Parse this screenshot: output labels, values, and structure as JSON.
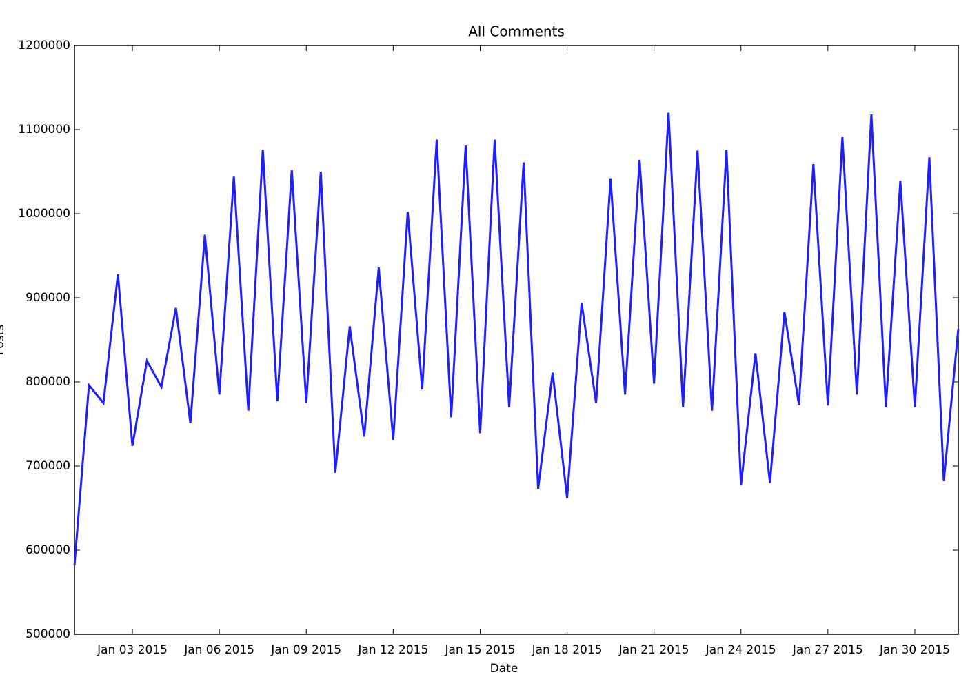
{
  "chart_data": {
    "type": "line",
    "title": "All Comments",
    "x_label": "Date",
    "y_label": "Posts",
    "x": [
      "2015-01-01T00:00",
      "2015-01-01T12:00",
      "2015-01-02T00:00",
      "2015-01-02T12:00",
      "2015-01-03T00:00",
      "2015-01-03T12:00",
      "2015-01-04T00:00",
      "2015-01-04T12:00",
      "2015-01-05T00:00",
      "2015-01-05T12:00",
      "2015-01-06T00:00",
      "2015-01-06T12:00",
      "2015-01-07T00:00",
      "2015-01-07T12:00",
      "2015-01-08T00:00",
      "2015-01-08T12:00",
      "2015-01-09T00:00",
      "2015-01-09T12:00",
      "2015-01-10T00:00",
      "2015-01-10T12:00",
      "2015-01-11T00:00",
      "2015-01-11T12:00",
      "2015-01-12T00:00",
      "2015-01-12T12:00",
      "2015-01-13T00:00",
      "2015-01-13T12:00",
      "2015-01-14T00:00",
      "2015-01-14T12:00",
      "2015-01-15T00:00",
      "2015-01-15T12:00",
      "2015-01-16T00:00",
      "2015-01-16T12:00",
      "2015-01-17T00:00",
      "2015-01-17T12:00",
      "2015-01-18T00:00",
      "2015-01-18T12:00",
      "2015-01-19T00:00",
      "2015-01-19T12:00",
      "2015-01-20T00:00",
      "2015-01-20T12:00",
      "2015-01-21T00:00",
      "2015-01-21T12:00",
      "2015-01-22T00:00",
      "2015-01-22T12:00",
      "2015-01-23T00:00",
      "2015-01-23T12:00",
      "2015-01-24T00:00",
      "2015-01-24T12:00",
      "2015-01-25T00:00",
      "2015-01-25T12:00",
      "2015-01-26T00:00",
      "2015-01-26T12:00",
      "2015-01-27T00:00",
      "2015-01-27T12:00",
      "2015-01-28T00:00",
      "2015-01-28T12:00",
      "2015-01-29T00:00",
      "2015-01-29T12:00",
      "2015-01-30T00:00",
      "2015-01-30T12:00",
      "2015-01-31T00:00",
      "2015-01-31T12:00"
    ],
    "series": [
      {
        "name": "Posts",
        "color": "#1f1ffb",
        "values": [
          582000,
          796000,
          775000,
          928000,
          724000,
          825000,
          794000,
          888000,
          751000,
          975000,
          785000,
          1044000,
          766000,
          1076000,
          777000,
          1052000,
          775000,
          1050000,
          692000,
          866000,
          735000,
          936000,
          731000,
          1002000,
          791000,
          1088000,
          758000,
          1081000,
          739000,
          1088000,
          770000,
          1061000,
          673000,
          811000,
          662000,
          894000,
          775000,
          1042000,
          785000,
          1064000,
          798000,
          1120000,
          770000,
          1075000,
          766000,
          1076000,
          677000,
          834000,
          680000,
          883000,
          773000,
          1059000,
          772000,
          1091000,
          785000,
          1118000,
          770000,
          1039000,
          770000,
          1067000,
          682000,
          863000
        ]
      }
    ],
    "xlim": [
      "2015-01-01T00:00",
      "2015-01-31T12:00"
    ],
    "xticks": [
      {
        "value": "2015-01-03T00:00",
        "label": "Jan 03 2015"
      },
      {
        "value": "2015-01-06T00:00",
        "label": "Jan 06 2015"
      },
      {
        "value": "2015-01-09T00:00",
        "label": "Jan 09 2015"
      },
      {
        "value": "2015-01-12T00:00",
        "label": "Jan 12 2015"
      },
      {
        "value": "2015-01-15T00:00",
        "label": "Jan 15 2015"
      },
      {
        "value": "2015-01-18T00:00",
        "label": "Jan 18 2015"
      },
      {
        "value": "2015-01-21T00:00",
        "label": "Jan 21 2015"
      },
      {
        "value": "2015-01-24T00:00",
        "label": "Jan 24 2015"
      },
      {
        "value": "2015-01-27T00:00",
        "label": "Jan 27 2015"
      },
      {
        "value": "2015-01-30T00:00",
        "label": "Jan 30 2015"
      }
    ],
    "ylim": [
      500000,
      1200000
    ],
    "yticks": [
      500000,
      600000,
      700000,
      800000,
      900000,
      1000000,
      1100000,
      1200000
    ],
    "grid": false
  }
}
